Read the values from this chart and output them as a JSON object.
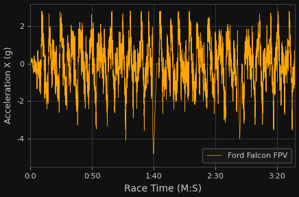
{
  "xlabel": "Race Time (M:S)",
  "ylabel": "Acceleration X (g)",
  "legend_label": "Ford Falcon FPV",
  "line_color": "#FFA500",
  "background_color": "#111111",
  "axes_background": "#111111",
  "text_color": "#cccccc",
  "grid_color": "#555555",
  "ylim": [
    -5.5,
    3.2
  ],
  "yticks": [
    -4,
    -2,
    0,
    2
  ],
  "xlim_seconds": [
    0,
    215
  ],
  "xtick_seconds": [
    0,
    50,
    100,
    150,
    200
  ],
  "xtick_labels": [
    "0:0",
    "0:50",
    "1:40",
    "2:30",
    "3:20"
  ],
  "total_seconds": 215,
  "num_points": 8000,
  "seed": 7
}
